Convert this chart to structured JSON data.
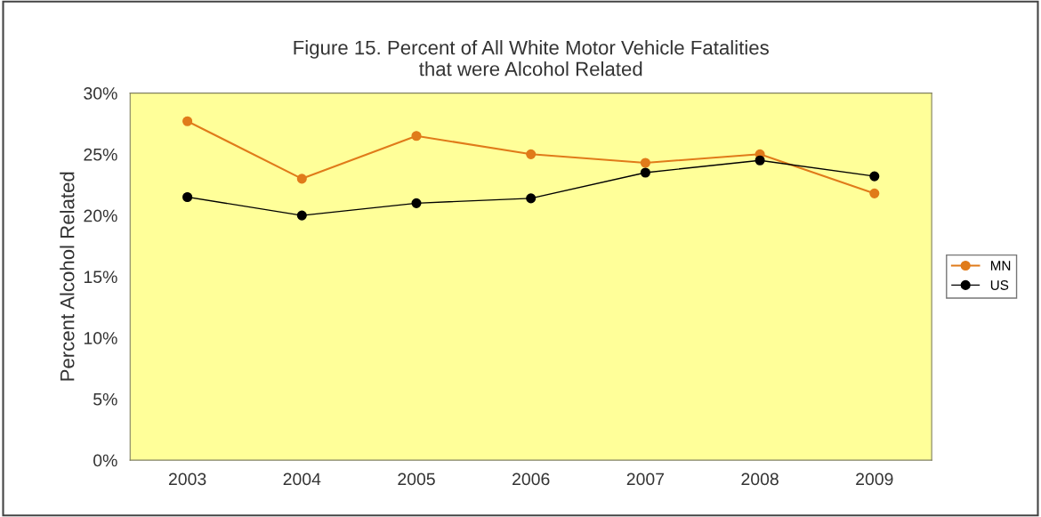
{
  "chart_data": {
    "type": "line",
    "title": "Figure 15. Percent of All White Motor Vehicle Fatalities\nthat were Alcohol Related",
    "ylabel": "Percent Alcohol Related",
    "categories": [
      "2003",
      "2004",
      "2005",
      "2006",
      "2007",
      "2008",
      "2009"
    ],
    "series": [
      {
        "name": "MN",
        "color": "#e07b1a",
        "values": [
          27.7,
          23.0,
          26.5,
          25.0,
          24.3,
          25.0,
          21.8
        ]
      },
      {
        "name": "US",
        "color": "#000000",
        "values": [
          21.5,
          20.0,
          21.0,
          21.4,
          23.5,
          24.5,
          23.2
        ]
      }
    ],
    "ylim": [
      0,
      30
    ],
    "yticks": [
      {
        "value": 0,
        "label": "0%"
      },
      {
        "value": 5,
        "label": "5%"
      },
      {
        "value": 10,
        "label": "10%"
      },
      {
        "value": 15,
        "label": "15%"
      },
      {
        "value": 20,
        "label": "20%"
      },
      {
        "value": 25,
        "label": "25%"
      },
      {
        "value": 30,
        "label": "30%"
      }
    ],
    "grid": false,
    "legend": "right",
    "marker": "circle",
    "line_style": "solid"
  }
}
